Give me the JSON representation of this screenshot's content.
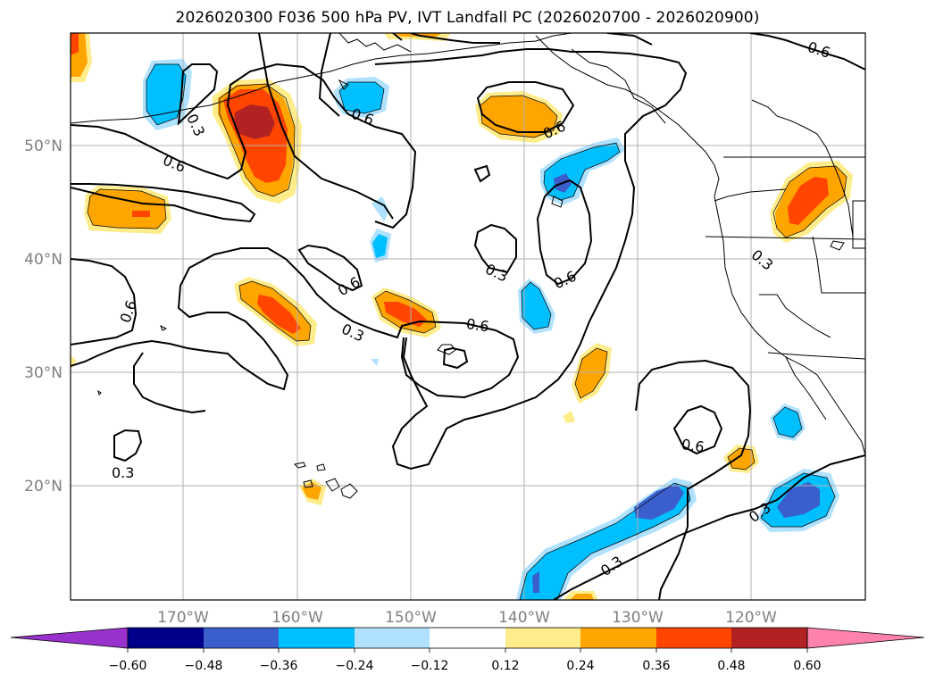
{
  "title": "2026020300 F036 500 hPa PV, IVT Landfall PC (2026020700 - 2026020900)",
  "axes": {
    "lat_labels": [
      "50°N",
      "40°N",
      "30°N",
      "20°N"
    ],
    "lon_labels": [
      "170°W",
      "160°W",
      "150°W",
      "140°W",
      "130°W",
      "120°W"
    ]
  },
  "contour_labels": [
    "0.6",
    "0.3",
    "0.6",
    "0.6",
    "0.6",
    "0.6",
    "0.3",
    "0.6",
    "0.6",
    "0.3",
    "0.6",
    "0.3",
    "0.3",
    "0.6",
    "0.3",
    "0.3"
  ],
  "colorbar": {
    "ticks": [
      "−0.60",
      "−0.48",
      "−0.36",
      "−0.24",
      "−0.12",
      "0.12",
      "0.24",
      "0.36",
      "0.48",
      "0.60"
    ],
    "colors": [
      "#9932cc",
      "#00008b",
      "#3a5fcd",
      "#00bfff",
      "#b0e2ff",
      "#ffffff",
      "#ffec8b",
      "#ffa500",
      "#ff4500",
      "#b22222",
      "#ff82ab"
    ]
  },
  "fill_colors": {
    "pos1": "#ffec8b",
    "pos2": "#ffa500",
    "pos3": "#ff4500",
    "pos4": "#b22222",
    "neg1": "#b0e2ff",
    "neg2": "#00bfff",
    "neg3": "#3a5fcd"
  }
}
